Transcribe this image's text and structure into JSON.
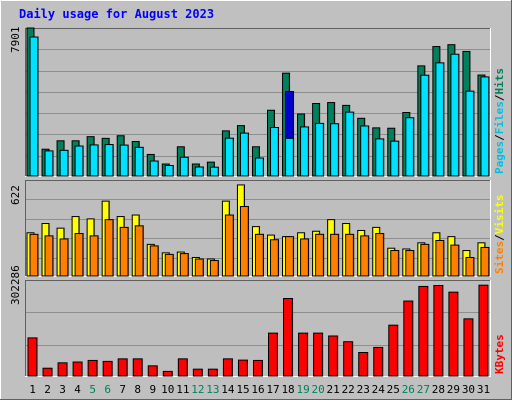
{
  "title": "Daily usage for August 2023",
  "colors": {
    "page_bg": "#c0c0c0",
    "panel_bg": "#bebebe",
    "grid": "#8e8e8e",
    "hits": "#00805c",
    "files": "#00e0ff",
    "pages": "#00c0e0",
    "visits": "#ffff00",
    "sites": "#ff8000",
    "kbytes": "#ff0000",
    "highlight": "#0000d0",
    "title": "#0000ff",
    "weekend_label": "#00805c",
    "label": "#000000"
  },
  "chart_data": [
    {
      "type": "bar",
      "name": "hits-files-pages",
      "ymax_label": "7901",
      "ylim": [
        0,
        7901
      ],
      "legend": [
        "Pages",
        "/",
        "Files",
        "/",
        "Hits"
      ],
      "categories": [
        "1",
        "2",
        "3",
        "4",
        "5",
        "6",
        "7",
        "8",
        "9",
        "10",
        "11",
        "12",
        "13",
        "14",
        "15",
        "16",
        "17",
        "18",
        "19",
        "20",
        "21",
        "22",
        "23",
        "24",
        "25",
        "26",
        "27",
        "28",
        "29",
        "30",
        "31"
      ],
      "weekends": [
        "5",
        "6",
        "12",
        "13",
        "19",
        "20",
        "26",
        "27"
      ],
      "highlight_day": "18",
      "series": [
        {
          "name": "Hits",
          "values": [
            7901,
            1430,
            1880,
            1880,
            2100,
            2010,
            2150,
            1840,
            1150,
            640,
            1560,
            640,
            740,
            2410,
            2690,
            1560,
            3510,
            5490,
            3310,
            3870,
            3920,
            3770,
            3080,
            2570,
            2550,
            3390,
            5880,
            6910,
            7010,
            6650,
            5390
          ]
        },
        {
          "name": "Files",
          "values": [
            7420,
            1340,
            1370,
            1600,
            1660,
            1680,
            1650,
            1530,
            800,
            560,
            1000,
            480,
            470,
            2020,
            2290,
            960,
            2590,
            4510,
            2620,
            2810,
            2790,
            3410,
            2670,
            1980,
            1860,
            3110,
            5380,
            6040,
            6500,
            4530,
            5290
          ]
        },
        {
          "name": "Pages",
          "values": [
            0,
            0,
            0,
            0,
            0,
            0,
            0,
            0,
            0,
            0,
            0,
            0,
            0,
            0,
            0,
            0,
            0,
            2010,
            0,
            0,
            0,
            0,
            0,
            0,
            0,
            0,
            0,
            0,
            0,
            0,
            0
          ]
        }
      ]
    },
    {
      "type": "bar",
      "name": "visits-sites",
      "ymax_label": "622",
      "ylim": [
        0,
        622
      ],
      "legend": [
        "Sites",
        "/",
        "Visits"
      ],
      "categories": [
        "1",
        "2",
        "3",
        "4",
        "5",
        "6",
        "7",
        "8",
        "9",
        "10",
        "11",
        "12",
        "13",
        "14",
        "15",
        "16",
        "17",
        "18",
        "19",
        "20",
        "21",
        "22",
        "23",
        "24",
        "25",
        "26",
        "27",
        "28",
        "29",
        "30",
        "31"
      ],
      "series": [
        {
          "name": "Visits",
          "values": [
            280,
            340,
            310,
            385,
            370,
            485,
            385,
            395,
            205,
            150,
            155,
            120,
            110,
            485,
            590,
            320,
            265,
            255,
            280,
            290,
            365,
            340,
            295,
            315,
            180,
            175,
            215,
            280,
            255,
            165,
            215
          ]
        },
        {
          "name": "Sites",
          "values": [
            270,
            260,
            240,
            275,
            260,
            365,
            315,
            325,
            195,
            140,
            145,
            110,
            100,
            395,
            450,
            270,
            235,
            255,
            240,
            270,
            270,
            270,
            260,
            275,
            165,
            165,
            205,
            230,
            200,
            120,
            185
          ]
        }
      ]
    },
    {
      "type": "bar",
      "name": "kbytes",
      "ymax_label": "302286",
      "ylim": [
        0,
        302286
      ],
      "legend": [
        "KBytes"
      ],
      "categories": [
        "1",
        "2",
        "3",
        "4",
        "5",
        "6",
        "7",
        "8",
        "9",
        "10",
        "11",
        "12",
        "13",
        "14",
        "15",
        "16",
        "17",
        "18",
        "19",
        "20",
        "21",
        "22",
        "23",
        "24",
        "25",
        "26",
        "27",
        "28",
        "29",
        "30",
        "31"
      ],
      "series": [
        {
          "name": "KBytes",
          "values": [
            120000,
            24500,
            41500,
            44000,
            49000,
            46000,
            54000,
            54000,
            32000,
            14500,
            54000,
            21500,
            21500,
            54000,
            50000,
            49000,
            135000,
            244000,
            135000,
            135000,
            126000,
            108000,
            74000,
            90000,
            160000,
            236000,
            282000,
            285000,
            264000,
            180000,
            286000
          ]
        }
      ]
    }
  ]
}
